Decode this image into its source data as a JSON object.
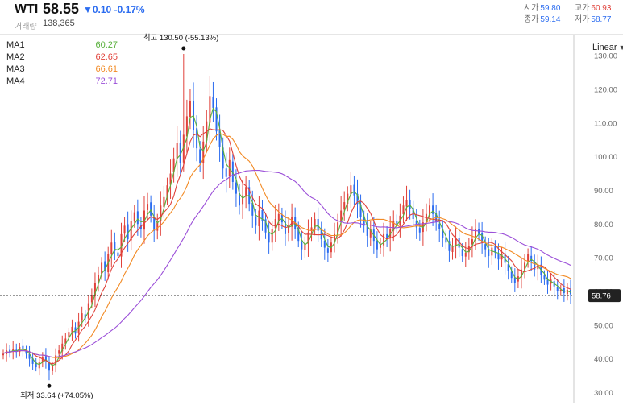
{
  "header": {
    "symbol": "WTI",
    "last": "58.55",
    "change": "▼0.10",
    "change_pct": "-0.17%",
    "volume_label": "거래량",
    "volume": "138,365",
    "open_label": "시가",
    "open": "59.80",
    "close_label": "종가",
    "close": "59.14",
    "high_label": "고가",
    "high": "60.93",
    "low_label": "저가",
    "low": "58.77"
  },
  "scale_mode": "Linear",
  "scale_mode_arrow": "▼",
  "legend": [
    {
      "name": "MA1",
      "value": "60.27",
      "color": "#59b03c"
    },
    {
      "name": "MA2",
      "value": "62.65",
      "color": "#e0413a"
    },
    {
      "name": "MA3",
      "value": "66.61",
      "color": "#f28a24"
    },
    {
      "name": "MA4",
      "value": "72.71",
      "color": "#9b4fd8"
    }
  ],
  "annotations": {
    "high": "최고  130.50 (-55.13%)",
    "low": "최저  33.64 (+74.05%)"
  },
  "chart_data": {
    "type": "candlestick",
    "y_ticks": [
      "30.00",
      "40.00",
      "50.00",
      "60.00",
      "70.00",
      "80.00",
      "90.00",
      "100.00",
      "110.00",
      "120.00",
      "130.00"
    ],
    "ylim": [
      27,
      136
    ],
    "current_price_label": "58.76",
    "current_price": 58.76,
    "colors": {
      "up": "#e0413a",
      "down": "#2b6cf0"
    },
    "series_close": [
      41.5,
      42.5,
      41.8,
      43.0,
      42.0,
      43.5,
      42.8,
      41.5,
      40.0,
      38.5,
      37.5,
      39.0,
      40.5,
      39.5,
      36.5,
      38.0,
      41.0,
      42.5,
      44.5,
      46.0,
      48.0,
      49.5,
      47.5,
      51.0,
      53.5,
      52.0,
      56.5,
      59.0,
      62.5,
      65.0,
      68.5,
      66.0,
      71.0,
      74.5,
      72.0,
      70.5,
      77.0,
      79.5,
      75.5,
      81.0,
      83.5,
      80.0,
      78.5,
      84.0,
      86.0,
      82.5,
      78.0,
      80.5,
      85.5,
      88.0,
      91.5,
      95.0,
      99.5,
      104.0,
      98.0,
      106.5,
      112.0,
      116.5,
      108.0,
      102.5,
      98.0,
      104.5,
      110.5,
      118.0,
      114.5,
      107.5,
      103.0,
      96.5,
      94.0,
      99.0,
      92.5,
      89.0,
      85.5,
      88.5,
      91.0,
      86.0,
      82.5,
      79.5,
      84.0,
      81.0,
      77.5,
      74.5,
      78.5,
      81.5,
      83.0,
      80.5,
      77.0,
      79.5,
      82.0,
      78.5,
      75.0,
      72.5,
      74.0,
      77.5,
      79.0,
      81.5,
      78.0,
      75.5,
      73.0,
      71.5,
      74.5,
      77.0,
      80.5,
      84.0,
      86.5,
      89.0,
      91.5,
      88.5,
      86.0,
      82.0,
      79.5,
      76.5,
      78.5,
      75.0,
      72.5,
      74.0,
      77.0,
      75.5,
      78.5,
      81.0,
      79.5,
      82.5,
      85.5,
      87.0,
      84.5,
      81.5,
      79.0,
      77.5,
      80.5,
      83.0,
      85.5,
      83.0,
      80.5,
      78.5,
      76.0,
      74.5,
      72.0,
      73.5,
      75.5,
      73.0,
      70.5,
      71.5,
      73.5,
      75.5,
      78.5,
      77.0,
      74.5,
      72.5,
      70.5,
      73.0,
      71.5,
      69.5,
      71.0,
      68.5,
      66.0,
      64.0,
      62.5,
      64.5,
      66.5,
      68.5,
      71.0,
      69.0,
      66.5,
      67.5,
      65.0,
      63.5,
      62.0,
      63.5,
      61.5,
      60.0,
      60.5,
      59.5,
      60.5,
      59.14
    ],
    "high_point": {
      "value": 130.5
    },
    "low_point": {
      "value": 33.64
    }
  }
}
